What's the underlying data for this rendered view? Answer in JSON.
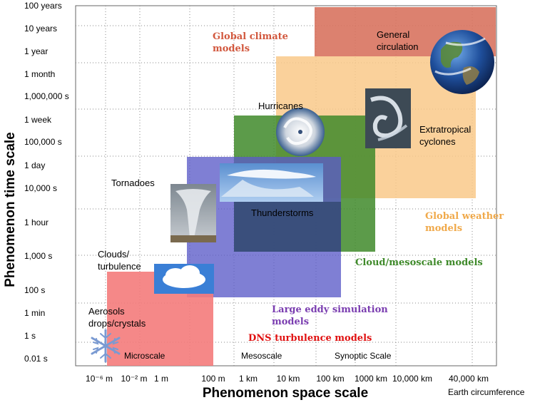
{
  "axes": {
    "y_title": "Phenomenon time scale",
    "x_title": "Phenomenon space scale",
    "y_ticks": [
      "100 years",
      "10 years",
      "1 year",
      "1 month",
      "1,000,000 s",
      "1 week",
      "100,000 s",
      "1 day",
      "10,000 s",
      "1 hour",
      "1,000 s",
      "100 s",
      "1 min",
      "1 s",
      "0.01 s"
    ],
    "x_ticks": [
      "10⁻⁶ m",
      "10⁻² m",
      "1 m",
      "100 m",
      "1 km",
      "10 km",
      "100 km",
      "1000 km",
      "10,000 km",
      "40,000 km"
    ],
    "x_note": "Earth circumference"
  },
  "phenomena": {
    "general_circulation": "General\ncirculation",
    "hurricanes": "Hurricanes",
    "extratropical": "Extratropical\ncyclones",
    "tornadoes": "Tornadoes",
    "thunderstorms": "Thunderstorms",
    "clouds": "Clouds/\nturbulence",
    "aerosols": "Aerosols\ndrops/crystals"
  },
  "models": {
    "global_climate": "Global climate\nmodels",
    "global_weather": "Global weather\nmodels",
    "cloud_mesoscale": "Cloud/mesoscale models",
    "les": "Large eddy simulation\nmodels",
    "dns": "DNS turbulence models"
  },
  "scale_names": {
    "micro": "Microscale",
    "meso": "Mesoscale",
    "synoptic": "Synoptic Scale"
  },
  "colors": {
    "global_climate": "#d8735f",
    "global_weather": "#f9c98a",
    "cloud_mesoscale": "#5a9a3c",
    "les": "#6f6fcf",
    "dns": "#f47b7b",
    "climate_text": "#d2583e",
    "weather_text": "#f0a94a",
    "meso_text": "#3f8a2a",
    "les_text": "#7a3db0",
    "dns_text": "#e01010"
  }
}
